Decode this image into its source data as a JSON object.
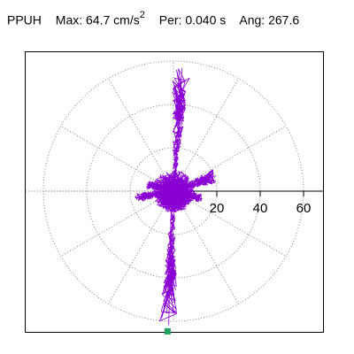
{
  "header": {
    "station": "PPUH",
    "max_label": "Max:",
    "max_value": "64.7 cm/s",
    "max_unit_exp": "2",
    "per_label": "Per:",
    "per_value": "0.040 s",
    "ang_label": "Ang:",
    "ang_value": "267.6"
  },
  "chart_data": {
    "type": "polar-trace",
    "title": "PPUH",
    "max_acceleration": 64.7,
    "max_unit": "cm/s^2",
    "period_s": 0.04,
    "angle_deg": 267.6,
    "radial_ticks": [
      20,
      40,
      60
    ],
    "radial_tick_labels": [
      "20",
      "40",
      "60"
    ],
    "rings": [
      20,
      40,
      60
    ],
    "spokes_deg": [
      0,
      30,
      60,
      90,
      120,
      150,
      180,
      210,
      240,
      270,
      300,
      330
    ],
    "grid": true,
    "trace_color": "#8a00d4",
    "marker_color": "#1f9e5e",
    "peak_marker": {
      "angle_deg": 267.6,
      "radius": 64.7
    },
    "trace_lobes": [
      {
        "angle_deg": 86,
        "radius": 57,
        "half_width": 3.2
      },
      {
        "angle_deg": 268,
        "radius": 62,
        "half_width": 3.0
      },
      {
        "angle_deg": 20,
        "radius": 21,
        "half_width": 6.0
      },
      {
        "angle_deg": 190,
        "radius": 18,
        "half_width": 5.0
      },
      {
        "angle_deg": 165,
        "radius": 13,
        "half_width": 6.0
      },
      {
        "angle_deg": 345,
        "radius": 14,
        "half_width": 6.0
      }
    ]
  }
}
